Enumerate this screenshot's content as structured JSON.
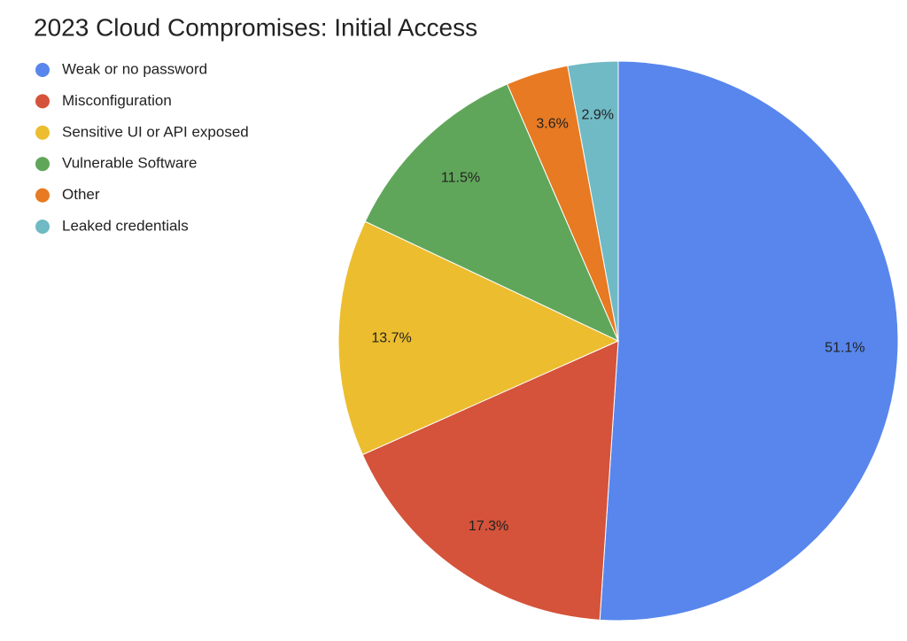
{
  "chart_data": {
    "type": "pie",
    "title": "2023 Cloud Compromises: Initial Access",
    "categories": [
      "Weak or no password",
      "Misconfiguration",
      "Sensitive UI or API exposed",
      "Vulnerable Software",
      "Other",
      "Leaked credentials"
    ],
    "values": [
      51.1,
      17.3,
      13.7,
      11.5,
      3.6,
      2.9
    ],
    "value_labels": [
      "51.1%",
      "17.3%",
      "13.7%",
      "11.5%",
      "3.6%",
      "2.9%"
    ],
    "colors": [
      "#5886ed",
      "#d4533a",
      "#ecbd2f",
      "#60a65a",
      "#e77a22",
      "#6fbac4"
    ],
    "legend": "top-left"
  }
}
